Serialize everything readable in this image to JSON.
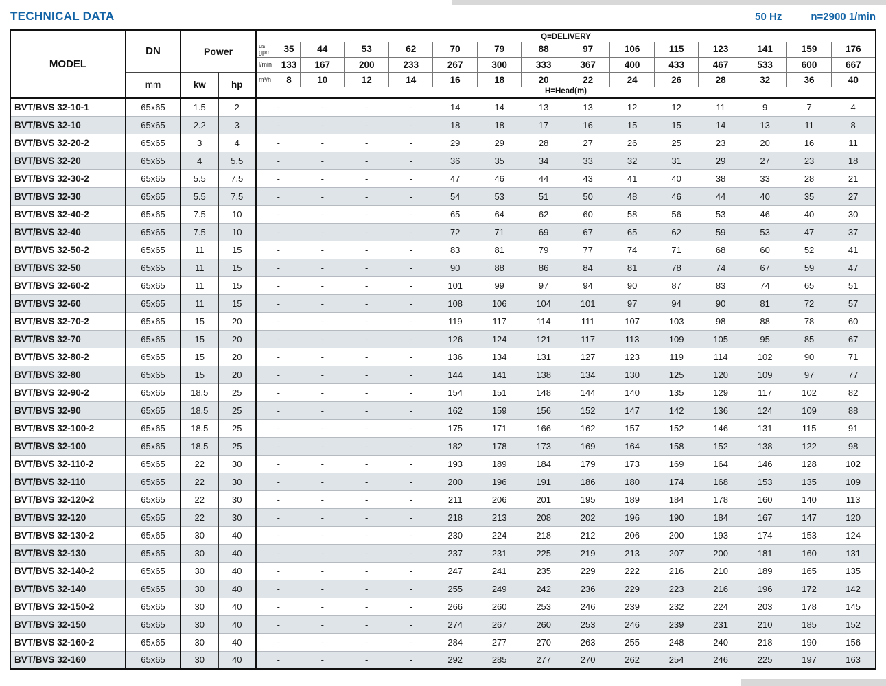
{
  "page": {
    "title": "TECHNICAL DATA",
    "frequency": "50 Hz",
    "speed": "n=2900 1/min"
  },
  "table": {
    "headers": {
      "model": "MODEL",
      "dn": "DN",
      "dn_unit": "mm",
      "power": "Power",
      "kw_label": "kw",
      "hp_label": "hp",
      "delivery_title": "Q=DELIVERY",
      "head_label": "H=Head(m)",
      "unit_rows": [
        {
          "unit": "us\ngpm",
          "values": [
            "35",
            "44",
            "53",
            "62",
            "70",
            "79",
            "88",
            "97",
            "106",
            "115",
            "123",
            "141",
            "159",
            "176"
          ]
        },
        {
          "unit": "l/min",
          "values": [
            "133",
            "167",
            "200",
            "233",
            "267",
            "300",
            "333",
            "367",
            "400",
            "433",
            "467",
            "533",
            "600",
            "667"
          ]
        },
        {
          "unit": "m³/h",
          "values": [
            "8",
            "10",
            "12",
            "14",
            "16",
            "18",
            "20",
            "22",
            "24",
            "26",
            "28",
            "32",
            "36",
            "40"
          ]
        }
      ]
    },
    "rows": [
      {
        "model": "BVT/BVS 32-10-1",
        "dn": "65x65",
        "kw": "1.5",
        "hp": "2",
        "values": [
          "-",
          "-",
          "-",
          "-",
          "14",
          "14",
          "13",
          "13",
          "12",
          "12",
          "11",
          "9",
          "7",
          "4"
        ]
      },
      {
        "model": "BVT/BVS 32-10",
        "dn": "65x65",
        "kw": "2.2",
        "hp": "3",
        "values": [
          "-",
          "-",
          "-",
          "-",
          "18",
          "18",
          "17",
          "16",
          "15",
          "15",
          "14",
          "13",
          "11",
          "8"
        ]
      },
      {
        "model": "BVT/BVS 32-20-2",
        "dn": "65x65",
        "kw": "3",
        "hp": "4",
        "values": [
          "-",
          "-",
          "-",
          "-",
          "29",
          "29",
          "28",
          "27",
          "26",
          "25",
          "23",
          "20",
          "16",
          "11"
        ]
      },
      {
        "model": "BVT/BVS 32-20",
        "dn": "65x65",
        "kw": "4",
        "hp": "5.5",
        "values": [
          "-",
          "-",
          "-",
          "-",
          "36",
          "35",
          "34",
          "33",
          "32",
          "31",
          "29",
          "27",
          "23",
          "18"
        ]
      },
      {
        "model": "BVT/BVS 32-30-2",
        "dn": "65x65",
        "kw": "5.5",
        "hp": "7.5",
        "values": [
          "-",
          "-",
          "-",
          "-",
          "47",
          "46",
          "44",
          "43",
          "41",
          "40",
          "38",
          "33",
          "28",
          "21"
        ]
      },
      {
        "model": "BVT/BVS 32-30",
        "dn": "65x65",
        "kw": "5.5",
        "hp": "7.5",
        "values": [
          "-",
          "-",
          "-",
          "-",
          "54",
          "53",
          "51",
          "50",
          "48",
          "46",
          "44",
          "40",
          "35",
          "27"
        ]
      },
      {
        "model": "BVT/BVS 32-40-2",
        "dn": "65x65",
        "kw": "7.5",
        "hp": "10",
        "values": [
          "-",
          "-",
          "-",
          "-",
          "65",
          "64",
          "62",
          "60",
          "58",
          "56",
          "53",
          "46",
          "40",
          "30"
        ]
      },
      {
        "model": "BVT/BVS 32-40",
        "dn": "65x65",
        "kw": "7.5",
        "hp": "10",
        "values": [
          "-",
          "-",
          "-",
          "-",
          "72",
          "71",
          "69",
          "67",
          "65",
          "62",
          "59",
          "53",
          "47",
          "37"
        ]
      },
      {
        "model": "BVT/BVS 32-50-2",
        "dn": "65x65",
        "kw": "11",
        "hp": "15",
        "values": [
          "-",
          "-",
          "-",
          "-",
          "83",
          "81",
          "79",
          "77",
          "74",
          "71",
          "68",
          "60",
          "52",
          "41"
        ]
      },
      {
        "model": "BVT/BVS 32-50",
        "dn": "65x65",
        "kw": "11",
        "hp": "15",
        "values": [
          "-",
          "-",
          "-",
          "-",
          "90",
          "88",
          "86",
          "84",
          "81",
          "78",
          "74",
          "67",
          "59",
          "47"
        ]
      },
      {
        "model": "BVT/BVS 32-60-2",
        "dn": "65x65",
        "kw": "11",
        "hp": "15",
        "values": [
          "-",
          "-",
          "-",
          "-",
          "101",
          "99",
          "97",
          "94",
          "90",
          "87",
          "83",
          "74",
          "65",
          "51"
        ]
      },
      {
        "model": "BVT/BVS 32-60",
        "dn": "65x65",
        "kw": "11",
        "hp": "15",
        "values": [
          "-",
          "-",
          "-",
          "-",
          "108",
          "106",
          "104",
          "101",
          "97",
          "94",
          "90",
          "81",
          "72",
          "57"
        ]
      },
      {
        "model": "BVT/BVS 32-70-2",
        "dn": "65x65",
        "kw": "15",
        "hp": "20",
        "values": [
          "-",
          "-",
          "-",
          "-",
          "119",
          "117",
          "114",
          "111",
          "107",
          "103",
          "98",
          "88",
          "78",
          "60"
        ]
      },
      {
        "model": "BVT/BVS 32-70",
        "dn": "65x65",
        "kw": "15",
        "hp": "20",
        "values": [
          "-",
          "-",
          "-",
          "-",
          "126",
          "124",
          "121",
          "117",
          "113",
          "109",
          "105",
          "95",
          "85",
          "67"
        ]
      },
      {
        "model": "BVT/BVS 32-80-2",
        "dn": "65x65",
        "kw": "15",
        "hp": "20",
        "values": [
          "-",
          "-",
          "-",
          "-",
          "136",
          "134",
          "131",
          "127",
          "123",
          "119",
          "114",
          "102",
          "90",
          "71"
        ]
      },
      {
        "model": "BVT/BVS 32-80",
        "dn": "65x65",
        "kw": "15",
        "hp": "20",
        "values": [
          "-",
          "-",
          "-",
          "-",
          "144",
          "141",
          "138",
          "134",
          "130",
          "125",
          "120",
          "109",
          "97",
          "77"
        ]
      },
      {
        "model": "BVT/BVS 32-90-2",
        "dn": "65x65",
        "kw": "18.5",
        "hp": "25",
        "values": [
          "-",
          "-",
          "-",
          "-",
          "154",
          "151",
          "148",
          "144",
          "140",
          "135",
          "129",
          "117",
          "102",
          "82"
        ]
      },
      {
        "model": "BVT/BVS 32-90",
        "dn": "65x65",
        "kw": "18.5",
        "hp": "25",
        "values": [
          "-",
          "-",
          "-",
          "-",
          "162",
          "159",
          "156",
          "152",
          "147",
          "142",
          "136",
          "124",
          "109",
          "88"
        ]
      },
      {
        "model": "BVT/BVS 32-100-2",
        "dn": "65x65",
        "kw": "18.5",
        "hp": "25",
        "values": [
          "-",
          "-",
          "-",
          "-",
          "175",
          "171",
          "166",
          "162",
          "157",
          "152",
          "146",
          "131",
          "115",
          "91"
        ]
      },
      {
        "model": "BVT/BVS 32-100",
        "dn": "65x65",
        "kw": "18.5",
        "hp": "25",
        "values": [
          "-",
          "-",
          "-",
          "-",
          "182",
          "178",
          "173",
          "169",
          "164",
          "158",
          "152",
          "138",
          "122",
          "98"
        ]
      },
      {
        "model": "BVT/BVS 32-110-2",
        "dn": "65x65",
        "kw": "22",
        "hp": "30",
        "values": [
          "-",
          "-",
          "-",
          "-",
          "193",
          "189",
          "184",
          "179",
          "173",
          "169",
          "164",
          "146",
          "128",
          "102"
        ]
      },
      {
        "model": "BVT/BVS 32-110",
        "dn": "65x65",
        "kw": "22",
        "hp": "30",
        "values": [
          "-",
          "-",
          "-",
          "-",
          "200",
          "196",
          "191",
          "186",
          "180",
          "174",
          "168",
          "153",
          "135",
          "109"
        ]
      },
      {
        "model": "BVT/BVS 32-120-2",
        "dn": "65x65",
        "kw": "22",
        "hp": "30",
        "values": [
          "-",
          "-",
          "-",
          "-",
          "211",
          "206",
          "201",
          "195",
          "189",
          "184",
          "178",
          "160",
          "140",
          "113"
        ]
      },
      {
        "model": "BVT/BVS 32-120",
        "dn": "65x65",
        "kw": "22",
        "hp": "30",
        "values": [
          "-",
          "-",
          "-",
          "-",
          "218",
          "213",
          "208",
          "202",
          "196",
          "190",
          "184",
          "167",
          "147",
          "120"
        ]
      },
      {
        "model": "BVT/BVS 32-130-2",
        "dn": "65x65",
        "kw": "30",
        "hp": "40",
        "values": [
          "-",
          "-",
          "-",
          "-",
          "230",
          "224",
          "218",
          "212",
          "206",
          "200",
          "193",
          "174",
          "153",
          "124"
        ]
      },
      {
        "model": "BVT/BVS 32-130",
        "dn": "65x65",
        "kw": "30",
        "hp": "40",
        "values": [
          "-",
          "-",
          "-",
          "-",
          "237",
          "231",
          "225",
          "219",
          "213",
          "207",
          "200",
          "181",
          "160",
          "131"
        ]
      },
      {
        "model": "BVT/BVS 32-140-2",
        "dn": "65x65",
        "kw": "30",
        "hp": "40",
        "values": [
          "-",
          "-",
          "-",
          "-",
          "247",
          "241",
          "235",
          "229",
          "222",
          "216",
          "210",
          "189",
          "165",
          "135"
        ]
      },
      {
        "model": "BVT/BVS 32-140",
        "dn": "65x65",
        "kw": "30",
        "hp": "40",
        "values": [
          "-",
          "-",
          "-",
          "-",
          "255",
          "249",
          "242",
          "236",
          "229",
          "223",
          "216",
          "196",
          "172",
          "142"
        ]
      },
      {
        "model": "BVT/BVS 32-150-2",
        "dn": "65x65",
        "kw": "30",
        "hp": "40",
        "values": [
          "-",
          "-",
          "-",
          "-",
          "266",
          "260",
          "253",
          "246",
          "239",
          "232",
          "224",
          "203",
          "178",
          "145"
        ]
      },
      {
        "model": "BVT/BVS 32-150",
        "dn": "65x65",
        "kw": "30",
        "hp": "40",
        "values": [
          "-",
          "-",
          "-",
          "-",
          "274",
          "267",
          "260",
          "253",
          "246",
          "239",
          "231",
          "210",
          "185",
          "152"
        ]
      },
      {
        "model": "BVT/BVS 32-160-2",
        "dn": "65x65",
        "kw": "30",
        "hp": "40",
        "values": [
          "-",
          "-",
          "-",
          "-",
          "284",
          "277",
          "270",
          "263",
          "255",
          "248",
          "240",
          "218",
          "190",
          "156"
        ]
      },
      {
        "model": "BVT/BVS 32-160",
        "dn": "65x65",
        "kw": "30",
        "hp": "40",
        "values": [
          "-",
          "-",
          "-",
          "-",
          "292",
          "285",
          "277",
          "270",
          "262",
          "254",
          "246",
          "225",
          "197",
          "163"
        ]
      }
    ]
  }
}
